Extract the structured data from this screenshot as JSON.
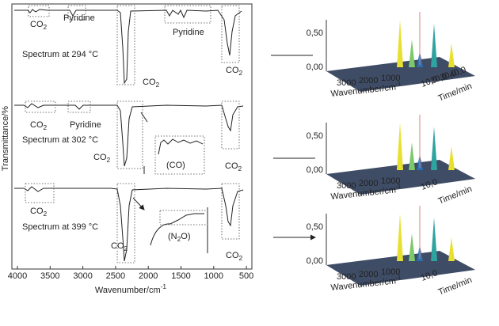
{
  "left_panel": {
    "y_label": "Transmittance/%",
    "x_label": {
      "text": "Wavenumber/cm",
      "sup": "-1"
    },
    "x_ticks": [
      4000,
      3500,
      3000,
      2500,
      2000,
      1500,
      1000,
      500
    ],
    "spectra": [
      {
        "label": "Spectrum at 294 °C",
        "annotations": [
          {
            "text": "CO",
            "sub": "2"
          },
          {
            "text": "Pyridine"
          },
          {
            "text": "Pyridine"
          },
          {
            "text": "CO",
            "sub": "2"
          },
          {
            "text": "CO",
            "sub": "2"
          }
        ]
      },
      {
        "label": "Spectrum at 302 °C",
        "annotations": [
          {
            "text": "CO",
            "sub": "2"
          },
          {
            "text": "Pyridine"
          },
          {
            "text": "CO",
            "sub": "2"
          },
          {
            "text": "(CO)"
          },
          {
            "text": "CO",
            "sub": "2"
          }
        ]
      },
      {
        "label": "Spectrum at 399 °C",
        "annotations": [
          {
            "text": "CO",
            "sub": "2"
          },
          {
            "text": "CO",
            "sub": "2"
          },
          {
            "text": "(N",
            "sub": "2",
            "tail": "O)"
          },
          {
            "text": "CO",
            "sub": "2"
          }
        ]
      }
    ]
  },
  "right_panels": [
    {
      "z_ticks": [
        "0,50",
        "0,00"
      ],
      "x_ticks": [
        "3000",
        "2000",
        "1000"
      ],
      "x_label": {
        "text": "Wavenumber/cm",
        "sup": "-1"
      },
      "time_label": "Time/min",
      "time_ticks": [
        "10,0",
        "20,0",
        "30,0",
        "40,0"
      ]
    },
    {
      "z_ticks": [
        "0,50",
        "0,00"
      ],
      "x_ticks": [
        "3000",
        "2000",
        "1000"
      ],
      "x_label": {
        "text": "Wavenumber/cm",
        "sup": "-1"
      },
      "time_label": "Time/min",
      "time_ticks": [
        "10,0"
      ]
    },
    {
      "z_ticks": [
        "0,50",
        "0,00"
      ],
      "x_ticks": [
        "3000",
        "2000",
        "1000"
      ],
      "x_label": {
        "text": "Wavenumber/cm",
        "sup": "-1"
      },
      "time_label": "Time/min",
      "time_ticks": [
        "10,0"
      ]
    }
  ]
}
